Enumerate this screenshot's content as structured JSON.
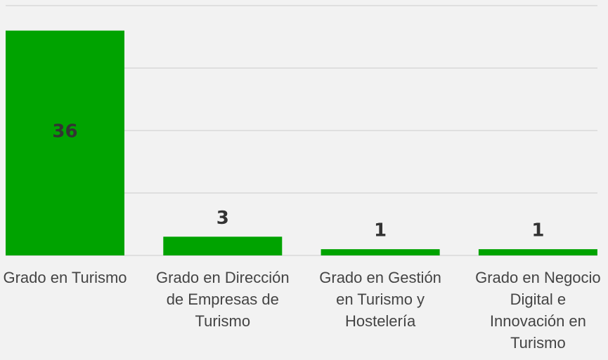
{
  "chart_data": {
    "type": "bar",
    "categories": [
      "Grado en Turismo",
      "Grado en Dirección de Empresas de Turismo",
      "Grado en Gestión en Turismo y Hostelería",
      "Grado en Negocio Digital e Innovación en Turismo"
    ],
    "values": [
      36,
      3,
      1,
      1
    ],
    "color": "#00a300",
    "ylim": [
      0,
      40
    ],
    "yticks": [
      0,
      10,
      20,
      30,
      40
    ],
    "grid": true
  }
}
